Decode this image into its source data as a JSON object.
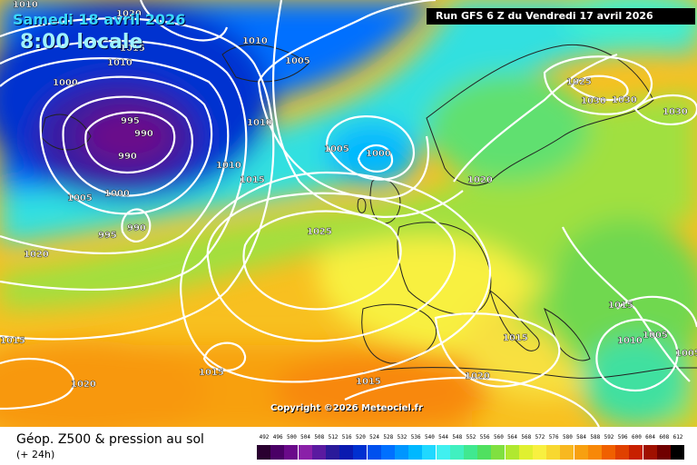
{
  "run_label": "Run GFS 6 Z du Vendredi 17 avril 2026",
  "date_label": "Samedi 18 avril 2026",
  "time_label": "8:00 locale",
  "copyright": "Copyright ©2026 Meteociel.fr",
  "footer": {
    "title": "Géop. Z500 & pression au sol",
    "subtitle": "(+ 24h)"
  },
  "legend": {
    "values": [
      "492",
      "496",
      "500",
      "504",
      "508",
      "512",
      "516",
      "520",
      "524",
      "528",
      "532",
      "536",
      "540",
      "544",
      "548",
      "552",
      "556",
      "560",
      "564",
      "568",
      "572",
      "576",
      "580",
      "584",
      "588",
      "592",
      "596",
      "600",
      "604",
      "608",
      "612"
    ],
    "colors": [
      "#2a0030",
      "#4a0066",
      "#6a0a8a",
      "#8a20a8",
      "#5a1aa0",
      "#2a1a9a",
      "#0a1ab0",
      "#0030d0",
      "#0050ee",
      "#0070ff",
      "#0096ff",
      "#00b8ff",
      "#20d8ff",
      "#40f0f0",
      "#40f0c0",
      "#40e890",
      "#50e060",
      "#80e040",
      "#b0e830",
      "#e0f030",
      "#f8f040",
      "#f8d830",
      "#f8b820",
      "#f8a010",
      "#f88808",
      "#f06000",
      "#e04000",
      "#c82000",
      "#a01000",
      "#700000",
      "#000000"
    ]
  },
  "pressure_labels": [
    {
      "text": "1010"
    },
    {
      "text": "1020"
    },
    {
      "text": "1015"
    },
    {
      "text": "1010"
    },
    {
      "text": "1000"
    },
    {
      "text": "995"
    },
    {
      "text": "990"
    },
    {
      "text": "990"
    },
    {
      "text": "1005"
    },
    {
      "text": "1000"
    },
    {
      "text": "995"
    },
    {
      "text": "990"
    },
    {
      "text": "1010"
    },
    {
      "text": "1005"
    },
    {
      "text": "1010"
    },
    {
      "text": "1005"
    },
    {
      "text": "1000"
    },
    {
      "text": "1010"
    },
    {
      "text": "1015"
    },
    {
      "text": "1025"
    },
    {
      "text": "1020"
    },
    {
      "text": "1025"
    },
    {
      "text": "1030"
    },
    {
      "text": "1030"
    },
    {
      "text": "1030"
    },
    {
      "text": "1020"
    },
    {
      "text": "1015"
    },
    {
      "text": "1015"
    },
    {
      "text": "1015"
    },
    {
      "text": "1015"
    },
    {
      "text": "1020"
    },
    {
      "text": "1015"
    },
    {
      "text": "1020"
    },
    {
      "text": "1010"
    },
    {
      "text": "1005"
    },
    {
      "text": "1005"
    }
  ]
}
